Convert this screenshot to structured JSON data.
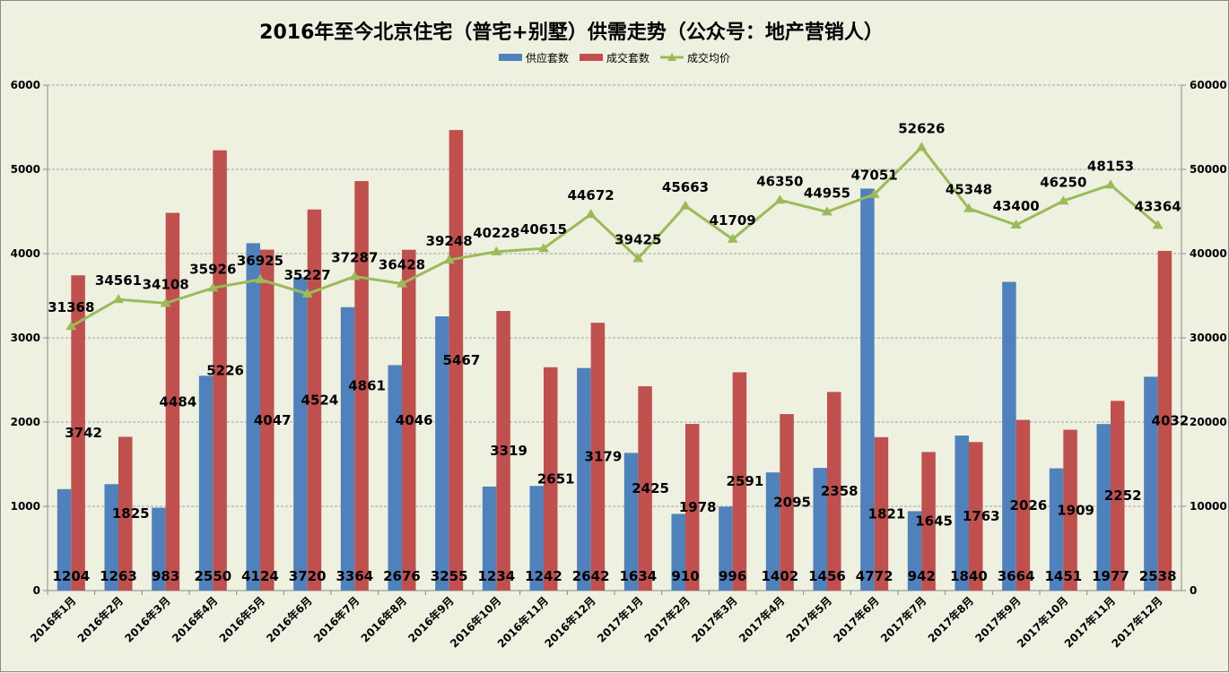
{
  "chart_data": {
    "type": "bar",
    "title": "2016年至今北京住宅（普宅+别墅）供需走势（公众号：地产营销人）",
    "legend_position": "top",
    "grid": true,
    "categories": [
      "2016年1月",
      "2016年2月",
      "2016年3月",
      "2016年4月",
      "2016年5月",
      "2016年6月",
      "2016年7月",
      "2016年8月",
      "2016年9月",
      "2016年10月",
      "2016年11月",
      "2016年12月",
      "2017年1月",
      "2017年2月",
      "2017年3月",
      "2017年4月",
      "2017年5月",
      "2017年6月",
      "2017年7月",
      "2017年8月",
      "2017年9月",
      "2017年10月",
      "2017年11月",
      "2017年12月"
    ],
    "series": [
      {
        "name": "供应套数",
        "type": "bar",
        "axis": "left",
        "color": "#4f81bd",
        "values": [
          1204,
          1263,
          983,
          2550,
          4124,
          3720,
          3364,
          2676,
          3255,
          1234,
          1242,
          2642,
          1634,
          910,
          996,
          1402,
          1456,
          4772,
          942,
          1840,
          3664,
          1451,
          1977,
          2538
        ]
      },
      {
        "name": "成交套数",
        "type": "bar",
        "axis": "left",
        "color": "#c0504d",
        "values": [
          3742,
          1825,
          4484,
          5226,
          4047,
          4524,
          4861,
          4046,
          5467,
          3319,
          2651,
          3179,
          2425,
          1978,
          2591,
          2095,
          2358,
          1821,
          1645,
          1763,
          2026,
          1909,
          2252,
          4032
        ]
      },
      {
        "name": "成交均价",
        "type": "line",
        "axis": "right",
        "color": "#9bbb59",
        "values": [
          31368,
          34561,
          34108,
          35926,
          36925,
          35227,
          37287,
          36428,
          39248,
          40228,
          40615,
          44672,
          39425,
          45663,
          41709,
          46350,
          44955,
          47051,
          52626,
          45348,
          43400,
          46250,
          48153,
          43364
        ]
      }
    ],
    "ylim_left": [
      0,
      6000
    ],
    "yticks_left": [
      0,
      1000,
      2000,
      3000,
      4000,
      5000,
      6000
    ],
    "ylim_right": [
      0,
      60000
    ],
    "yticks_right": [
      0,
      10000,
      20000,
      30000,
      40000,
      50000,
      60000
    ]
  }
}
